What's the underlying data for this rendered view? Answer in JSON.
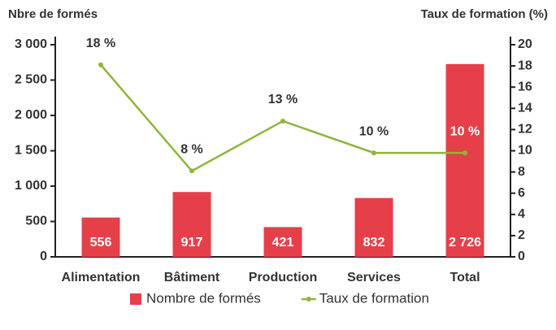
{
  "chart_data": {
    "type": "bar_line",
    "ylabel": "Nbre de formés",
    "y2label": "Taux de formation (%)",
    "categories": [
      "Alimentation",
      "Bâtiment",
      "Production",
      "Services",
      "Total"
    ],
    "series": [
      {
        "name": "Nombre de formés",
        "type": "bar",
        "color": "#e5404a",
        "values": [
          556,
          917,
          421,
          832,
          2726
        ],
        "value_labels": [
          "556",
          "917",
          "421",
          "832",
          "2 726"
        ]
      },
      {
        "name": "Taux de formation",
        "type": "line",
        "axis": "y2",
        "color": "#8db63c",
        "values": [
          18.1,
          8.1,
          12.8,
          9.8,
          9.8
        ],
        "value_labels": [
          "18 %",
          "8 %",
          "13 %",
          "10 %",
          "10 %"
        ]
      }
    ],
    "ylim": [
      0,
      3000
    ],
    "yticks": [
      0,
      500,
      {
        "value": 1000,
        "label": "1 000"
      },
      {
        "value": 1500,
        "label": "1 500"
      },
      {
        "value": 2000,
        "label": "2 000"
      },
      {
        "value": 2500,
        "label": "2 500"
      },
      {
        "value": 3000,
        "label": "3 000"
      }
    ],
    "y2lim": [
      0,
      20
    ],
    "y2ticks": [
      0,
      2,
      4,
      6,
      8,
      10,
      12,
      14,
      16,
      18,
      20
    ],
    "legend": "bottom"
  }
}
